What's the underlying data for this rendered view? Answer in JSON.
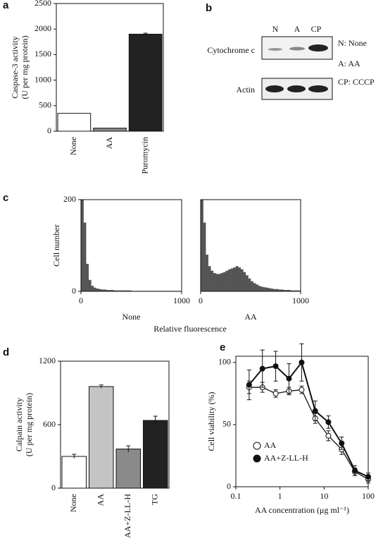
{
  "chart_data": [
    {
      "type": "bar",
      "panel": "a",
      "ylabel": [
        "Caspase-3 activity",
        "(U per mg protein)"
      ],
      "categories": [
        "None",
        "AA",
        "Puromycin"
      ],
      "values": [
        350,
        60,
        1900
      ],
      "errors": [
        0,
        0,
        20
      ],
      "colors": [
        "#ffffff",
        "#8a8a8a",
        "#222222"
      ],
      "ylim": [
        0,
        2500
      ],
      "yticks": [
        0,
        500,
        1000,
        1500,
        2000,
        2500
      ]
    },
    {
      "type": "histogram",
      "panel": "c",
      "ylabel": "Cell number",
      "xlabel": "Relative fluorescence",
      "caption": "None",
      "color": "#555555",
      "bins": [
        0,
        25,
        50,
        75,
        100,
        125,
        150,
        175,
        200,
        225,
        250,
        275,
        300,
        325,
        350,
        375,
        400,
        425,
        450,
        475,
        500,
        525,
        550,
        575,
        600,
        625,
        650,
        675,
        700,
        725,
        750,
        775,
        800,
        825,
        850,
        875,
        900,
        925,
        950,
        975,
        1000
      ],
      "counts": [
        200,
        150,
        60,
        25,
        12,
        8,
        6,
        5,
        4,
        4,
        3,
        3,
        3,
        2,
        2,
        2,
        2,
        2,
        2,
        2,
        1,
        1,
        1,
        1,
        1,
        1,
        1,
        1,
        1,
        1,
        1,
        1,
        1,
        1,
        1,
        1,
        1,
        1,
        1,
        1
      ],
      "xlim": [
        0,
        1000
      ],
      "xticks": [
        0,
        1000
      ],
      "ylim": [
        0,
        200
      ],
      "yticks": [
        0,
        200
      ]
    },
    {
      "type": "histogram",
      "caption": "AA",
      "color": "#555555",
      "bins": [
        0,
        25,
        50,
        75,
        100,
        125,
        150,
        175,
        200,
        225,
        250,
        275,
        300,
        325,
        350,
        375,
        400,
        425,
        450,
        475,
        500,
        525,
        550,
        575,
        600,
        625,
        650,
        675,
        700,
        725,
        750,
        775,
        800,
        825,
        850,
        875,
        900,
        925,
        950,
        975,
        1000
      ],
      "counts": [
        200,
        150,
        80,
        55,
        45,
        40,
        38,
        38,
        40,
        42,
        45,
        48,
        50,
        52,
        55,
        52,
        48,
        42,
        35,
        28,
        22,
        18,
        15,
        12,
        10,
        9,
        8,
        7,
        6,
        5,
        5,
        4,
        4,
        3,
        3,
        3,
        2,
        2,
        2,
        2
      ],
      "xlim": [
        0,
        1000
      ],
      "xticks": [
        0,
        1000
      ],
      "ylim": [
        0,
        200
      ]
    },
    {
      "type": "bar",
      "panel": "d",
      "ylabel": [
        "Calpain activity",
        "(U per mg protein)"
      ],
      "categories": [
        "None",
        "AA",
        "AA+Z-LL-H",
        "TG"
      ],
      "values": [
        300,
        960,
        370,
        640
      ],
      "errors": [
        20,
        15,
        30,
        40
      ],
      "colors": [
        "#ffffff",
        "#c4c4c4",
        "#8a8a8a",
        "#222222"
      ],
      "ylim": [
        0,
        1200
      ],
      "yticks": [
        0,
        600,
        1200
      ]
    },
    {
      "type": "line",
      "panel": "e",
      "ylabel": "Cell viability (%)",
      "xlabel": "AA concentration (μg ml⁻¹)",
      "log_x": true,
      "legend": "lower left",
      "x": [
        0.2,
        0.4,
        0.8,
        1.6,
        3.1,
        6.3,
        12.5,
        25,
        50,
        100
      ],
      "series": [
        {
          "name": "AA",
          "color": "#111111",
          "marker": "open",
          "values": [
            80,
            80,
            75,
            77,
            78,
            55,
            41,
            30,
            12,
            6
          ],
          "errors": [
            5,
            4,
            3,
            3,
            3,
            4,
            4,
            4,
            3,
            3
          ]
        },
        {
          "name": "AA+Z-LL-H",
          "color": "#111111",
          "marker": "filled",
          "values": [
            82,
            95,
            97,
            87,
            100,
            61,
            52,
            35,
            13,
            8
          ],
          "errors": [
            12,
            15,
            12,
            12,
            15,
            8,
            5,
            5,
            4,
            3
          ]
        }
      ],
      "xlim": [
        0.1,
        100
      ],
      "xticks": [
        0.1,
        1,
        10,
        100
      ],
      "ylim": [
        0,
        105
      ],
      "yticks": [
        0,
        50,
        100
      ]
    }
  ],
  "blot": {
    "panel": "b",
    "lanes": [
      "N",
      "A",
      "CP"
    ],
    "bands": [
      "Cytochrome c",
      "Actin"
    ],
    "legend": [
      "N: None",
      "A: AA",
      "CP: CCCP"
    ]
  }
}
